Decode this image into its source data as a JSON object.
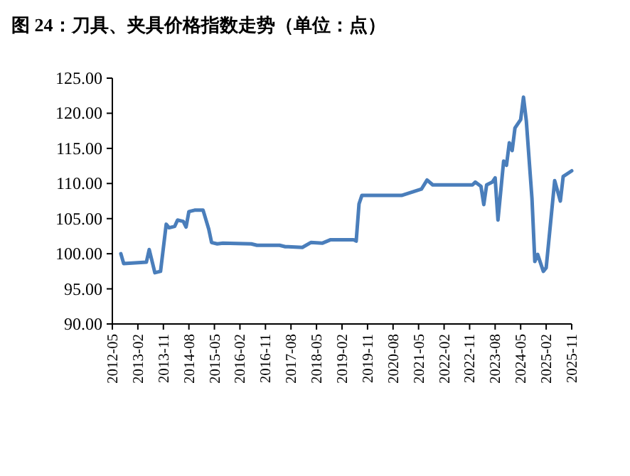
{
  "chart_data": {
    "type": "line",
    "title": "图 24：刀具、夹具价格指数走势（单位：点）",
    "x": [
      "2012-08",
      "2012-09",
      "2013-05",
      "2013-06",
      "2013-08",
      "2013-10",
      "2013-12",
      "2014-01",
      "2014-03",
      "2014-04",
      "2014-06",
      "2014-07",
      "2014-08",
      "2014-10",
      "2015-01",
      "2015-03",
      "2015-04",
      "2015-06",
      "2015-08",
      "2016-06",
      "2016-08",
      "2017-04",
      "2017-06",
      "2017-07",
      "2017-12",
      "2018-03",
      "2018-07",
      "2018-10",
      "2019-06",
      "2019-07",
      "2019-08",
      "2019-09",
      "2020-11",
      "2021-06",
      "2021-08",
      "2021-10",
      "2022-12",
      "2023-01",
      "2023-03",
      "2023-04",
      "2023-05",
      "2023-07",
      "2023-08",
      "2023-09",
      "2023-11",
      "2023-12",
      "2024-01",
      "2024-02",
      "2024-03",
      "2024-05",
      "2024-06",
      "2024-07",
      "2024-09",
      "2024-10",
      "2024-11",
      "2025-01",
      "2025-02",
      "2025-05",
      "2025-07",
      "2025-08",
      "2025-11"
    ],
    "series": [
      {
        "color": "#4a7ebb",
        "values": [
          100.0,
          98.6,
          98.8,
          100.6,
          97.3,
          97.5,
          104.2,
          103.7,
          103.9,
          104.8,
          104.6,
          103.8,
          106.0,
          106.2,
          106.2,
          103.5,
          101.6,
          101.4,
          101.5,
          101.4,
          101.2,
          101.2,
          101.0,
          101.0,
          100.9,
          101.6,
          101.5,
          102.0,
          102.0,
          101.8,
          107.1,
          108.3,
          108.3,
          109.2,
          110.5,
          109.8,
          109.8,
          110.2,
          109.6,
          107.0,
          109.8,
          110.2,
          110.8,
          104.8,
          113.2,
          112.6,
          115.8,
          114.7,
          117.9,
          119.1,
          122.3,
          118.9,
          107.8,
          98.9,
          99.9,
          97.5,
          98.0,
          110.4,
          107.5,
          111.0,
          111.8
        ]
      }
    ],
    "xlim": [
      "2012-05",
      "2025-11"
    ],
    "xticks": [
      "2012-05",
      "2013-02",
      "2013-11",
      "2014-08",
      "2015-05",
      "2016-02",
      "2016-11",
      "2017-08",
      "2018-05",
      "2019-02",
      "2019-11",
      "2020-08",
      "2021-05",
      "2022-02",
      "2022-11",
      "2023-08",
      "2024-05",
      "2025-02",
      "2025-11"
    ],
    "ylim": [
      90,
      125
    ],
    "yticks": [
      {
        "value": 90,
        "label": "90.00"
      },
      {
        "value": 95,
        "label": "95.00"
      },
      {
        "value": 100,
        "label": "100.00"
      },
      {
        "value": 105,
        "label": "105.00"
      },
      {
        "value": 110,
        "label": "110.00"
      },
      {
        "value": 115,
        "label": "115.00"
      },
      {
        "value": 120,
        "label": "120.00"
      },
      {
        "value": 125,
        "label": "125.00"
      }
    ],
    "marker": "none",
    "line_style": "solid"
  }
}
